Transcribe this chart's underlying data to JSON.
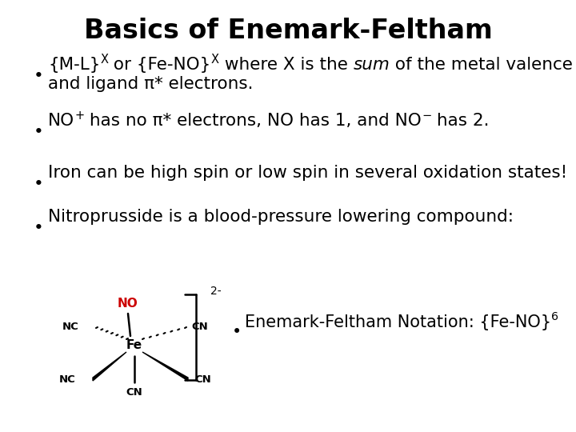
{
  "title": "Basics of Enemark-Feltham",
  "title_fontsize": 24,
  "background_color": "#ffffff",
  "text_color": "#000000",
  "bullet_fontsize": 15.5,
  "sub_fontsize": 15,
  "bullet_symbol": "•",
  "bullet3": "Iron can be high spin or low spin in several oxidation states!",
  "bullet4": "Nitroprusside is a blood-pressure lowering compound:",
  "subbullet": "Enemark-Feltham Notation: {Fe-NO}",
  "subbullet_sup": "6",
  "bullet1_line2": "and ligand π* electrons.",
  "red_color": "#cc0000"
}
